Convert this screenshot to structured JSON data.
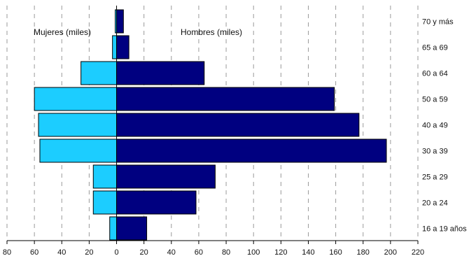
{
  "chart_data": {
    "type": "bar",
    "orientation": "horizontal",
    "subtype": "population-pyramid",
    "categories": [
      "70 y más",
      "65 a 69",
      "60 a 64",
      "50 a 59",
      "40 a 49",
      "30 a 39",
      "25 a 29",
      "20 a 24",
      "16 a 19 años"
    ],
    "series": [
      {
        "name": "Mujeres (miles)",
        "side": "left",
        "color": "#1ccdff",
        "values": [
          1,
          3,
          26,
          60,
          57,
          56,
          17,
          17,
          5
        ]
      },
      {
        "name": "Hombres (miles)",
        "side": "right",
        "color": "#000080",
        "values": [
          5,
          9,
          64,
          159,
          177,
          197,
          72,
          58,
          22
        ]
      }
    ],
    "xticks": [
      "80",
      "60",
      "40",
      "20",
      "0",
      "20",
      "40",
      "60",
      "80",
      "100",
      "120",
      "140",
      "160",
      "180",
      "200",
      "220"
    ],
    "xlim": [
      -80,
      220
    ],
    "grid": true,
    "title": "",
    "xlabel": "",
    "ylabel": ""
  }
}
